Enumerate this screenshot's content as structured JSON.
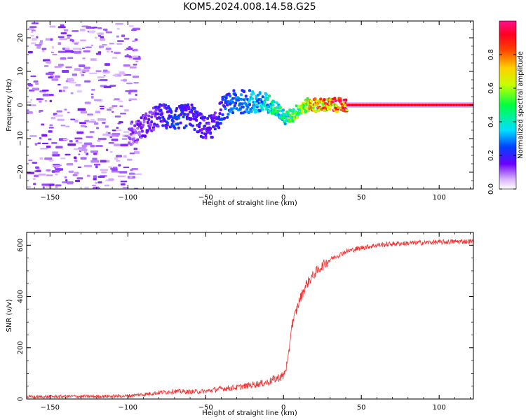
{
  "figure": {
    "title": "KOM5.2024.008.14.58.G25"
  },
  "chart_data": [
    {
      "type": "heatmap",
      "title": "KOM5.2024.008.14.58.G25",
      "xlabel": "Height of straight line (km)",
      "ylabel": "Frequency (Hz)",
      "xlim": [
        -165,
        122
      ],
      "ylim": [
        -25,
        25
      ],
      "xticks": [
        -150,
        -100,
        -50,
        0,
        50,
        100
      ],
      "yticks": [
        -20,
        -10,
        0,
        10,
        20
      ],
      "colorbar": {
        "label": "Normalized spectral amplitude",
        "ticks": [
          0.0,
          0.2,
          0.4,
          0.6,
          0.8
        ],
        "range": [
          0,
          1
        ],
        "colormap": "gist_rainbow"
      },
      "ridge": [
        {
          "x": -100,
          "y": -9,
          "amp": 0.12
        },
        {
          "x": -90,
          "y": -6,
          "amp": 0.15
        },
        {
          "x": -80,
          "y": -3,
          "amp": 0.2
        },
        {
          "x": -70,
          "y": -4,
          "amp": 0.25
        },
        {
          "x": -60,
          "y": -3,
          "amp": 0.22
        },
        {
          "x": -52,
          "y": -7,
          "amp": 0.18
        },
        {
          "x": -45,
          "y": -6,
          "amp": 0.2
        },
        {
          "x": -40,
          "y": -1,
          "amp": 0.25
        },
        {
          "x": -32,
          "y": 1,
          "amp": 0.3
        },
        {
          "x": -22,
          "y": 1,
          "amp": 0.35
        },
        {
          "x": -12,
          "y": 0,
          "amp": 0.42
        },
        {
          "x": -5,
          "y": -1,
          "amp": 0.5
        },
        {
          "x": 0,
          "y": -4,
          "amp": 0.45
        },
        {
          "x": 5,
          "y": -3,
          "amp": 0.55
        },
        {
          "x": 10,
          "y": -1,
          "amp": 0.6
        },
        {
          "x": 15,
          "y": 0,
          "amp": 0.75
        },
        {
          "x": 25,
          "y": 0,
          "amp": 0.85
        },
        {
          "x": 35,
          "y": 0,
          "amp": 0.95
        },
        {
          "x": 122,
          "y": 0,
          "amp": 1.0
        }
      ],
      "noise_region": {
        "x": [
          -165,
          -95
        ],
        "y": [
          -25,
          25
        ]
      }
    },
    {
      "type": "line",
      "xlabel": "Height of straight line (km)",
      "ylabel": "SNR (v/v)",
      "xlim": [
        -165,
        122
      ],
      "ylim": [
        0,
        650
      ],
      "xticks": [
        -150,
        -100,
        -50,
        0,
        50,
        100
      ],
      "yticks": [
        0,
        200,
        400,
        600
      ],
      "color": "#ee3333",
      "x": [
        -165,
        -140,
        -120,
        -100,
        -90,
        -80,
        -70,
        -60,
        -50,
        -40,
        -30,
        -20,
        -10,
        -5,
        0,
        3,
        5,
        8,
        10,
        12,
        15,
        20,
        25,
        30,
        35,
        40,
        50,
        60,
        70,
        80,
        90,
        100,
        110,
        122
      ],
      "y": [
        8,
        10,
        10,
        12,
        18,
        25,
        30,
        28,
        30,
        40,
        45,
        55,
        65,
        80,
        90,
        150,
        280,
        340,
        380,
        410,
        450,
        490,
        520,
        545,
        560,
        575,
        590,
        600,
        605,
        608,
        610,
        612,
        614,
        615
      ]
    }
  ]
}
